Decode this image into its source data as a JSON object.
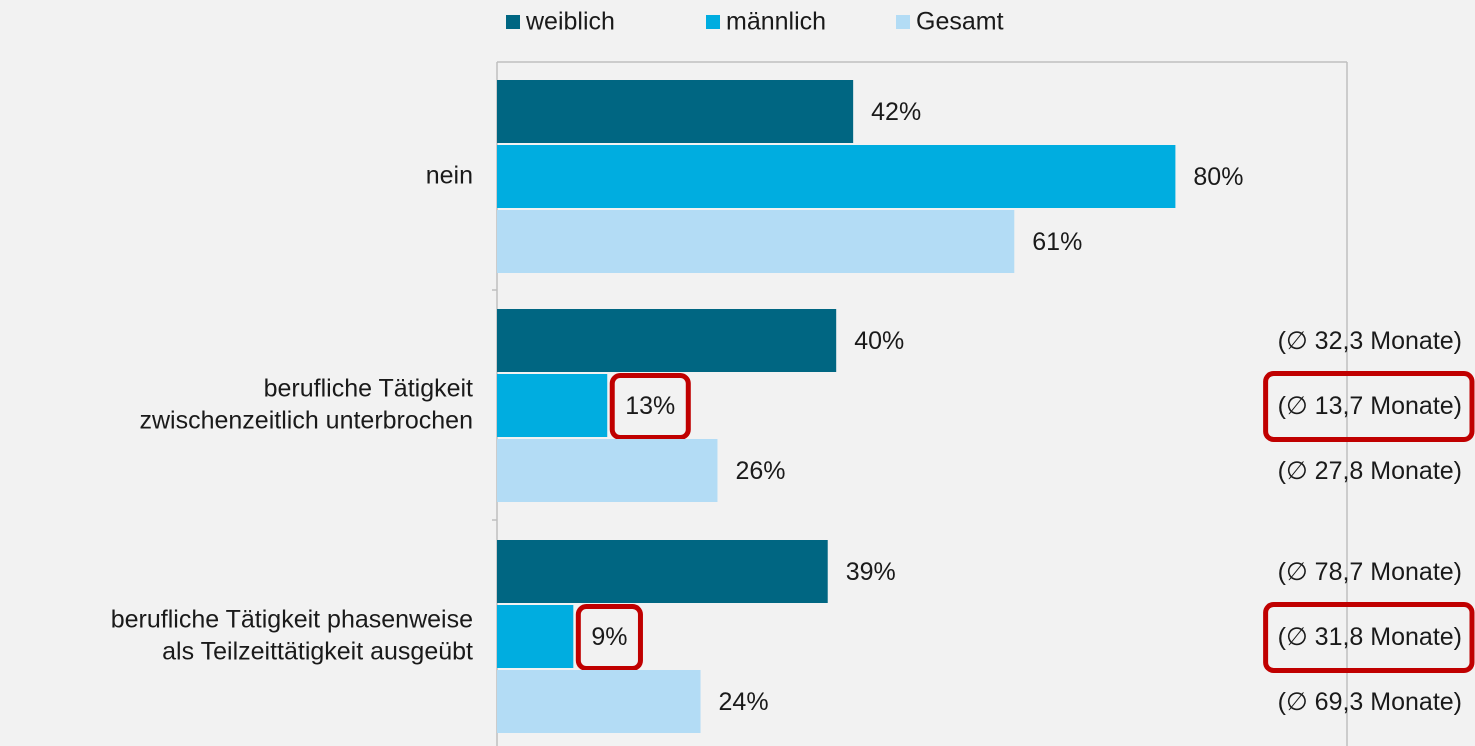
{
  "chart_data": {
    "type": "barh",
    "categories": [
      "nein",
      "berufliche Tätigkeit\nzwischenzeitlich unterbrochen",
      "berufliche Tätigkeit phasenweise\nals Teilzeittätigkeit ausgeübt"
    ],
    "series": [
      {
        "name": "weiblich",
        "color": "#006682",
        "values": [
          42,
          40,
          39
        ],
        "value_labels": [
          "42%",
          "40%",
          "39%"
        ],
        "highlight": [
          false,
          false,
          false
        ]
      },
      {
        "name": "männlich",
        "color": "#00ade0",
        "values": [
          80,
          13,
          9
        ],
        "value_labels": [
          "80%",
          "13%",
          "9%"
        ],
        "highlight": [
          false,
          true,
          true
        ]
      },
      {
        "name": "Gesamt",
        "color": "#b3dcf5",
        "values": [
          61,
          26,
          24
        ],
        "value_labels": [
          "61%",
          "26%",
          "24%"
        ],
        "highlight": [
          false,
          false,
          false
        ]
      }
    ],
    "xlim": [
      0,
      100
    ],
    "annotations": [
      {
        "category": 1,
        "series": 0,
        "text": "(∅ 32,3 Monate)",
        "highlight": false
      },
      {
        "category": 1,
        "series": 1,
        "text": "(∅ 13,7 Monate)",
        "highlight": true
      },
      {
        "category": 1,
        "series": 2,
        "text": "(∅ 27,8 Monate)",
        "highlight": false
      },
      {
        "category": 2,
        "series": 0,
        "text": "(∅ 78,7 Monate)",
        "highlight": false
      },
      {
        "category": 2,
        "series": 1,
        "text": "(∅ 31,8 Monate)",
        "highlight": true
      },
      {
        "category": 2,
        "series": 2,
        "text": "(∅ 69,3 Monate)",
        "highlight": false
      }
    ],
    "highlight_color": "#c00000",
    "legend": "top"
  }
}
